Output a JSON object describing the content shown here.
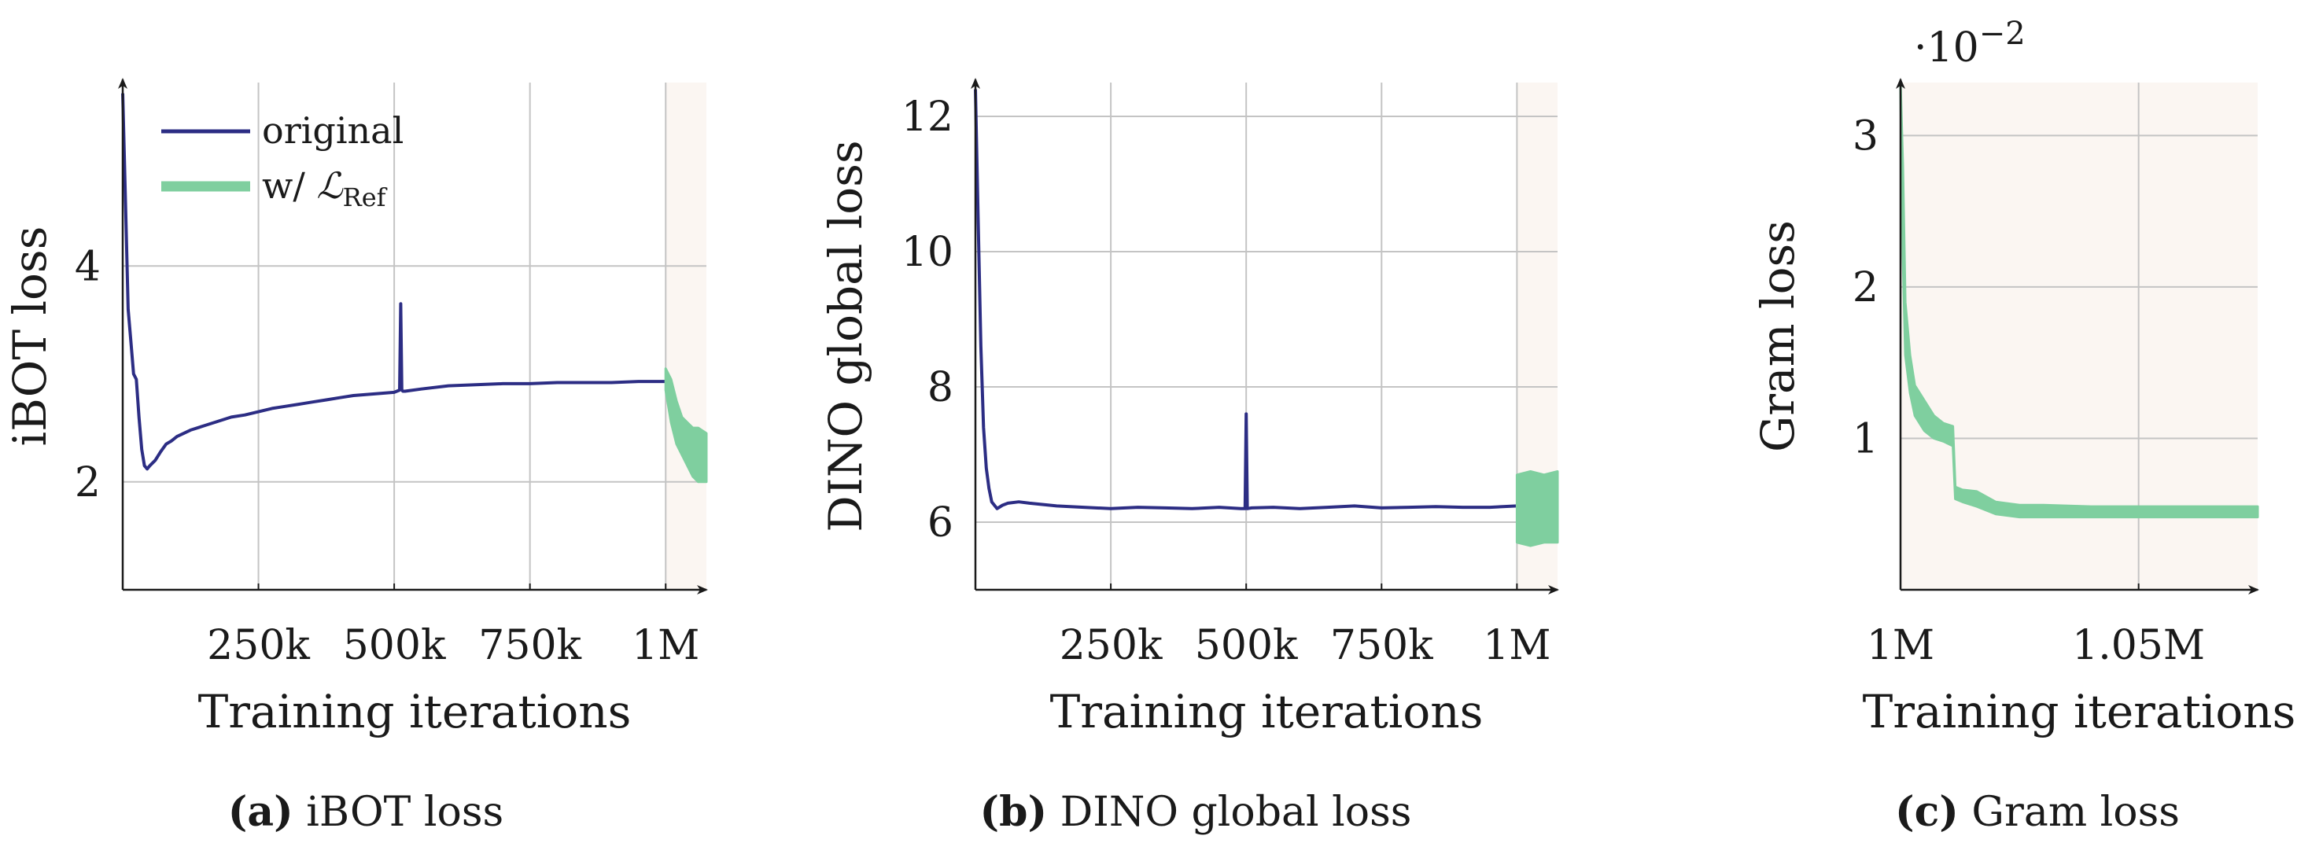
{
  "chart_data": [
    {
      "type": "line",
      "caption_letter": "(a)",
      "caption_text": "iBOT loss",
      "xlabel": "Training iterations",
      "ylabel": "iBOT loss",
      "xlim": [
        0,
        1075000
      ],
      "ylim": [
        1.0,
        5.7
      ],
      "xticks": [
        250000,
        500000,
        750000,
        1000000
      ],
      "xtick_labels": [
        "250k",
        "500k",
        "750k",
        "1M"
      ],
      "yticks": [
        2,
        4
      ],
      "ytick_labels": [
        "2",
        "4"
      ],
      "grid": true,
      "shaded_region": [
        1000000,
        1075000
      ],
      "legend": {
        "position": "top-left",
        "entries": [
          {
            "label": "original",
            "color": "#2c2d84"
          },
          {
            "label_main": "w/ ",
            "label_script": "ℒ",
            "label_sub": "Ref",
            "color": "#7fcf9f"
          }
        ]
      },
      "series": [
        {
          "name": "original",
          "color": "#2c2d84",
          "x": [
            0,
            5000,
            10000,
            15000,
            20000,
            25000,
            30000,
            35000,
            40000,
            45000,
            50000,
            60000,
            70000,
            80000,
            90000,
            100000,
            125000,
            150000,
            175000,
            200000,
            225000,
            250000,
            275000,
            300000,
            325000,
            350000,
            375000,
            400000,
            425000,
            450000,
            475000,
            500000,
            510000,
            512000,
            514000,
            516000,
            520000,
            550000,
            600000,
            650000,
            700000,
            750000,
            800000,
            850000,
            900000,
            950000,
            1000000
          ],
          "y": [
            5.6,
            4.6,
            3.6,
            3.3,
            3.0,
            2.95,
            2.6,
            2.3,
            2.15,
            2.12,
            2.15,
            2.2,
            2.28,
            2.35,
            2.38,
            2.42,
            2.48,
            2.52,
            2.56,
            2.6,
            2.62,
            2.65,
            2.68,
            2.7,
            2.72,
            2.74,
            2.76,
            2.78,
            2.8,
            2.81,
            2.82,
            2.83,
            2.85,
            3.65,
            2.85,
            2.84,
            2.84,
            2.86,
            2.89,
            2.9,
            2.91,
            2.91,
            2.92,
            2.92,
            2.92,
            2.93,
            2.93
          ]
        },
        {
          "name": "w/ ℒRef",
          "color": "#7fcf9f",
          "type": "band",
          "x": [
            1000000,
            1010000,
            1020000,
            1030000,
            1040000,
            1050000,
            1060000,
            1075000
          ],
          "y_low": [
            2.85,
            2.55,
            2.35,
            2.25,
            2.15,
            2.05,
            2.0,
            2.0
          ],
          "y_high": [
            3.05,
            2.95,
            2.75,
            2.6,
            2.55,
            2.5,
            2.5,
            2.45
          ]
        }
      ]
    },
    {
      "type": "line",
      "caption_letter": "(b)",
      "caption_text": "DINO global loss",
      "xlabel": "Training iterations",
      "ylabel": "DINO global loss",
      "xlim": [
        0,
        1075000
      ],
      "ylim": [
        5.0,
        12.5
      ],
      "xticks": [
        250000,
        500000,
        750000,
        1000000
      ],
      "xtick_labels": [
        "250k",
        "500k",
        "750k",
        "1M"
      ],
      "yticks": [
        6,
        8,
        10,
        12
      ],
      "ytick_labels": [
        "6",
        "8",
        "10",
        "12"
      ],
      "grid": true,
      "shaded_region": [
        1000000,
        1075000
      ],
      "series": [
        {
          "name": "original",
          "color": "#2c2d84",
          "x": [
            0,
            5000,
            10000,
            15000,
            20000,
            25000,
            30000,
            35000,
            40000,
            50000,
            60000,
            80000,
            100000,
            150000,
            200000,
            250000,
            300000,
            350000,
            400000,
            450000,
            490000,
            498000,
            500000,
            502000,
            510000,
            550000,
            600000,
            650000,
            700000,
            750000,
            800000,
            850000,
            900000,
            950000,
            1000000
          ],
          "y": [
            12.4,
            10.5,
            8.6,
            7.4,
            6.8,
            6.5,
            6.3,
            6.25,
            6.2,
            6.25,
            6.28,
            6.3,
            6.28,
            6.24,
            6.22,
            6.2,
            6.22,
            6.21,
            6.2,
            6.22,
            6.2,
            6.2,
            7.6,
            6.2,
            6.21,
            6.22,
            6.2,
            6.22,
            6.24,
            6.21,
            6.22,
            6.23,
            6.22,
            6.22,
            6.24
          ]
        },
        {
          "name": "w/ ℒRef",
          "color": "#7fcf9f",
          "type": "band",
          "x": [
            1000000,
            1025000,
            1050000,
            1075000
          ],
          "y_low": [
            5.7,
            5.65,
            5.7,
            5.7
          ],
          "y_high": [
            6.7,
            6.75,
            6.7,
            6.75
          ]
        }
      ]
    },
    {
      "type": "line",
      "caption_letter": "(c)",
      "caption_text": "Gram loss",
      "xlabel": "Training iterations",
      "ylabel": "Gram loss",
      "scale_label_base": "·10",
      "scale_label_exp": "−2",
      "xlim": [
        1000000,
        1075000
      ],
      "ylim": [
        0,
        3.35
      ],
      "xticks": [
        1000000,
        1050000
      ],
      "xtick_labels": [
        "1M",
        "1.05M"
      ],
      "yticks": [
        1,
        2,
        3
      ],
      "ytick_labels": [
        "1",
        "2",
        "3"
      ],
      "grid": true,
      "shaded_region": [
        1000000,
        1075000
      ],
      "series": [
        {
          "name": "w/ ℒRef",
          "color": "#7fcf9f",
          "type": "band",
          "x": [
            1000000,
            1000500,
            1001000,
            1002000,
            1003000,
            1005000,
            1007000,
            1009000,
            1011000,
            1011500,
            1013000,
            1016000,
            1020000,
            1025000,
            1030000,
            1040000,
            1050000,
            1060000,
            1075000
          ],
          "y_low": [
            3.3,
            2.2,
            1.55,
            1.3,
            1.15,
            1.05,
            1.0,
            0.98,
            0.95,
            0.6,
            0.58,
            0.55,
            0.5,
            0.48,
            0.48,
            0.48,
            0.48,
            0.48,
            0.48
          ],
          "y_high": [
            3.35,
            2.8,
            1.9,
            1.55,
            1.35,
            1.25,
            1.15,
            1.1,
            1.08,
            0.68,
            0.66,
            0.65,
            0.58,
            0.56,
            0.56,
            0.55,
            0.55,
            0.55,
            0.55
          ]
        }
      ]
    }
  ]
}
